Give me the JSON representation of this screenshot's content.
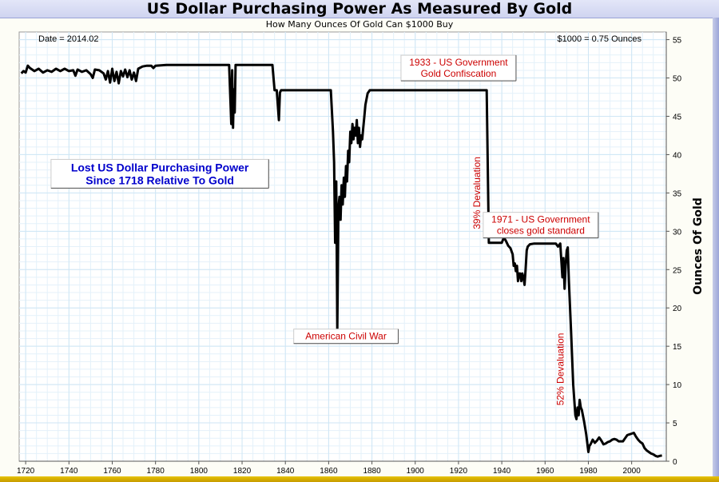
{
  "page": {
    "title": "US Dollar Purchasing Power As Measured By Gold",
    "subtitle": "How Many Ounces Of Gold Can $1000 Buy",
    "date_label": "Date = 2014.02",
    "current_value_label": "$1000 = 0.75 Ounces"
  },
  "colors": {
    "line": "#000000",
    "annotation_red": "#cc0000",
    "annotation_blue": "#0000cc",
    "grid": "#cfe6f5"
  },
  "chart_data": {
    "type": "line",
    "title": "US Dollar Purchasing Power As Measured By Gold",
    "subtitle": "How Many Ounces Of Gold Can $1000 Buy",
    "xlabel": "",
    "ylabel": "Ounces Of Gold",
    "xlim": [
      1717,
      2016
    ],
    "ylim": [
      0,
      56
    ],
    "y_axis_side": "right",
    "grid": true,
    "x_ticks": [
      1720,
      1740,
      1760,
      1780,
      1800,
      1820,
      1840,
      1860,
      1880,
      1900,
      1920,
      1940,
      1960,
      1980,
      2000
    ],
    "y_ticks": [
      0,
      5,
      10,
      15,
      20,
      25,
      30,
      35,
      40,
      45,
      50,
      55
    ],
    "series": [
      {
        "values": [
          [
            1718,
            50.6
          ],
          [
            1719,
            50.9
          ],
          [
            1720,
            50.7
          ],
          [
            1721,
            51.6
          ],
          [
            1722,
            51.3
          ],
          [
            1724,
            50.9
          ],
          [
            1726,
            51.2
          ],
          [
            1728,
            50.7
          ],
          [
            1730,
            51.0
          ],
          [
            1732,
            50.8
          ],
          [
            1734,
            51.2
          ],
          [
            1736,
            50.9
          ],
          [
            1738,
            51.2
          ],
          [
            1740,
            50.9
          ],
          [
            1742,
            51.0
          ],
          [
            1743,
            50.3
          ],
          [
            1744,
            51.1
          ],
          [
            1746,
            50.8
          ],
          [
            1748,
            51.0
          ],
          [
            1750,
            50.5
          ],
          [
            1751,
            50.0
          ],
          [
            1752,
            51.1
          ],
          [
            1754,
            51.0
          ],
          [
            1756,
            50.6
          ],
          [
            1757,
            49.8
          ],
          [
            1758,
            50.9
          ],
          [
            1759,
            49.4
          ],
          [
            1760,
            51.2
          ],
          [
            1761,
            49.6
          ],
          [
            1762,
            50.8
          ],
          [
            1763,
            49.3
          ],
          [
            1764,
            50.9
          ],
          [
            1765,
            50.2
          ],
          [
            1766,
            51.1
          ],
          [
            1767,
            50.1
          ],
          [
            1768,
            51.0
          ],
          [
            1769,
            49.8
          ],
          [
            1770,
            50.7
          ],
          [
            1771,
            49.6
          ],
          [
            1772,
            51.2
          ],
          [
            1774,
            51.5
          ],
          [
            1776,
            51.6
          ],
          [
            1778,
            51.6
          ],
          [
            1779,
            51.3
          ],
          [
            1780,
            51.6
          ],
          [
            1785,
            51.7
          ],
          [
            1790,
            51.7
          ],
          [
            1800,
            51.7
          ],
          [
            1810,
            51.7
          ],
          [
            1814,
            51.7
          ],
          [
            1815,
            44.0
          ],
          [
            1815.4,
            51.0
          ],
          [
            1815.8,
            43.5
          ],
          [
            1816.2,
            48.5
          ],
          [
            1816.6,
            45.5
          ],
          [
            1817,
            51.7
          ],
          [
            1825,
            51.7
          ],
          [
            1834,
            51.7
          ],
          [
            1835,
            48.4
          ],
          [
            1836,
            48.4
          ],
          [
            1837,
            44.5
          ],
          [
            1837.5,
            48.1
          ],
          [
            1838,
            48.4
          ],
          [
            1850,
            48.4
          ],
          [
            1860,
            48.4
          ],
          [
            1861,
            48.4
          ],
          [
            1862,
            43.0
          ],
          [
            1862.5,
            39.0
          ],
          [
            1863,
            28.5
          ],
          [
            1863.5,
            36.5
          ],
          [
            1864,
            17.2
          ],
          [
            1864.5,
            33.0
          ],
          [
            1865,
            34.5
          ],
          [
            1865.5,
            31.5
          ],
          [
            1866,
            36.0
          ],
          [
            1866.5,
            33.5
          ],
          [
            1867,
            37.0
          ],
          [
            1867.5,
            34.5
          ],
          [
            1868,
            38.5
          ],
          [
            1868.5,
            36.5
          ],
          [
            1869,
            40.5
          ],
          [
            1869.5,
            39.0
          ],
          [
            1870,
            43.0
          ],
          [
            1870.5,
            41.5
          ],
          [
            1871,
            44.0
          ],
          [
            1871.5,
            42.0
          ],
          [
            1872,
            43.5
          ],
          [
            1872.5,
            42.5
          ],
          [
            1873,
            44.5
          ],
          [
            1873.5,
            41.5
          ],
          [
            1874,
            43.5
          ],
          [
            1874.5,
            41.0
          ],
          [
            1875,
            42.5
          ],
          [
            1875.5,
            42.0
          ],
          [
            1876,
            43.5
          ],
          [
            1876.5,
            45.0
          ],
          [
            1877,
            46.5
          ],
          [
            1878,
            48.0
          ],
          [
            1879,
            48.4
          ],
          [
            1890,
            48.4
          ],
          [
            1900,
            48.4
          ],
          [
            1910,
            48.4
          ],
          [
            1920,
            48.4
          ],
          [
            1933,
            48.4
          ],
          [
            1934,
            28.5
          ],
          [
            1937,
            28.5
          ],
          [
            1940,
            28.5
          ],
          [
            1941,
            29.2
          ],
          [
            1942,
            28.7
          ],
          [
            1943,
            28.1
          ],
          [
            1944,
            27.8
          ],
          [
            1945,
            27.0
          ],
          [
            1945.5,
            25.5
          ],
          [
            1946,
            25.8
          ],
          [
            1946.5,
            24.8
          ],
          [
            1947,
            25.5
          ],
          [
            1947.5,
            23.5
          ],
          [
            1948,
            24.5
          ],
          [
            1948.5,
            24.5
          ],
          [
            1949,
            23.5
          ],
          [
            1949.5,
            24.5
          ],
          [
            1950,
            24.0
          ],
          [
            1950.5,
            23.0
          ],
          [
            1951,
            25.0
          ],
          [
            1951.5,
            27.5
          ],
          [
            1952,
            28.0
          ],
          [
            1953,
            28.3
          ],
          [
            1955,
            28.4
          ],
          [
            1960,
            28.4
          ],
          [
            1965,
            28.4
          ],
          [
            1966,
            28.0
          ],
          [
            1967,
            28.4
          ],
          [
            1968,
            24.0
          ],
          [
            1968.5,
            26.5
          ],
          [
            1969,
            22.5
          ],
          [
            1969.5,
            25.5
          ],
          [
            1970,
            27.5
          ],
          [
            1970.5,
            27.9
          ],
          [
            1971,
            23.5
          ],
          [
            1972,
            17.0
          ],
          [
            1973,
            10.0
          ],
          [
            1974,
            6.0
          ],
          [
            1974.5,
            5.5
          ],
          [
            1975,
            7.0
          ],
          [
            1975.5,
            6.0
          ],
          [
            1976,
            8.0
          ],
          [
            1976.5,
            7.0
          ],
          [
            1977,
            6.7
          ],
          [
            1978,
            5.2
          ],
          [
            1979,
            3.5
          ],
          [
            1980,
            1.2
          ],
          [
            1980.5,
            2.0
          ],
          [
            1981,
            2.2
          ],
          [
            1982,
            2.8
          ],
          [
            1983,
            2.4
          ],
          [
            1984,
            2.7
          ],
          [
            1985,
            3.1
          ],
          [
            1986,
            2.7
          ],
          [
            1987,
            2.2
          ],
          [
            1988,
            2.3
          ],
          [
            1989,
            2.5
          ],
          [
            1990,
            2.6
          ],
          [
            1991,
            2.8
          ],
          [
            1992,
            2.9
          ],
          [
            1993,
            2.8
          ],
          [
            1994,
            2.6
          ],
          [
            1995,
            2.6
          ],
          [
            1996,
            2.6
          ],
          [
            1997,
            3.0
          ],
          [
            1998,
            3.4
          ],
          [
            1999,
            3.5
          ],
          [
            2000,
            3.6
          ],
          [
            2001,
            3.7
          ],
          [
            2002,
            3.2
          ],
          [
            2003,
            2.8
          ],
          [
            2004,
            2.5
          ],
          [
            2005,
            2.3
          ],
          [
            2006,
            1.7
          ],
          [
            2007,
            1.4
          ],
          [
            2008,
            1.2
          ],
          [
            2009,
            1.0
          ],
          [
            2010,
            0.9
          ],
          [
            2011,
            0.7
          ],
          [
            2012,
            0.6
          ],
          [
            2013,
            0.7
          ],
          [
            2014,
            0.75
          ]
        ]
      }
    ],
    "annotations": [
      {
        "id": "civil-war",
        "lines": [
          "American Civil War"
        ],
        "anchor": [
          1868,
          16.3
        ],
        "color": "red",
        "box": true
      },
      {
        "id": "confiscation",
        "lines": [
          "1933 - US Government",
          "Gold Confiscation"
        ],
        "anchor": [
          1920,
          51.3
        ],
        "color": "red",
        "box": true
      },
      {
        "id": "devaluation-39",
        "lines": [
          "39% Devaluation"
        ],
        "anchor": [
          1930,
          35
        ],
        "color": "red",
        "rotate": -90
      },
      {
        "id": "closes-gold",
        "lines": [
          "1971 - US Government",
          "closes gold standard"
        ],
        "anchor": [
          1958,
          30.8
        ],
        "color": "red",
        "box": true
      },
      {
        "id": "devaluation-52",
        "lines": [
          "52% Devaluation"
        ],
        "anchor": [
          1968.5,
          12
        ],
        "color": "red",
        "rotate": -90
      },
      {
        "id": "lost-purchasing",
        "lines": [
          "Lost US Dollar Purchasing Power",
          "Since 1718 Relative To Gold"
        ],
        "anchor": [
          1782,
          37.5
        ],
        "color": "blue",
        "box": true,
        "bold": true,
        "size": 14
      }
    ]
  }
}
